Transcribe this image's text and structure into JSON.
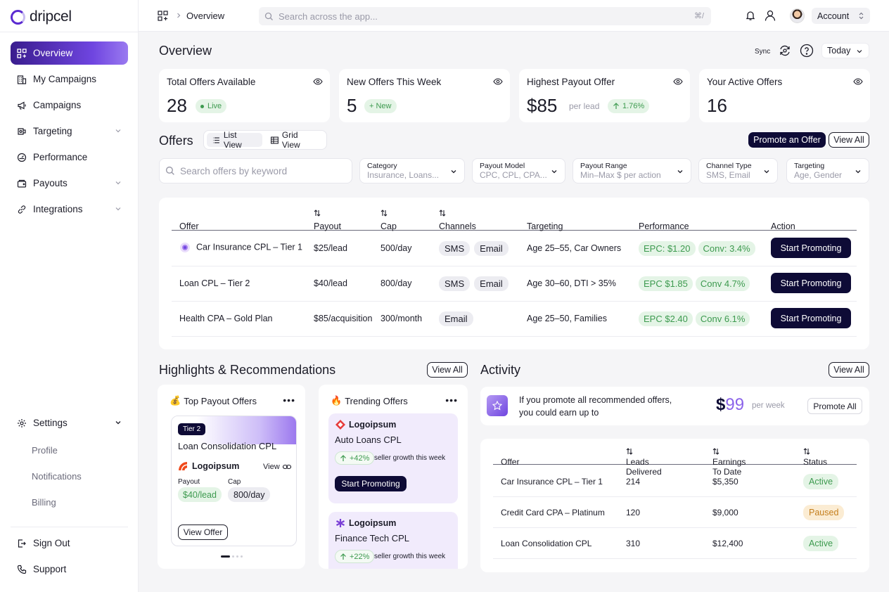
{
  "app": {
    "brand": "dripcel"
  },
  "sidebar": {
    "items": [
      {
        "label": "Overview",
        "icon": "grid-icon"
      },
      {
        "label": "My Campaigns",
        "icon": "building-icon"
      },
      {
        "label": "Campaigns",
        "icon": "megaphone-icon"
      },
      {
        "label": "Targeting",
        "icon": "target-icon"
      },
      {
        "label": "Performance",
        "icon": "gauge-icon"
      },
      {
        "label": "Payouts",
        "icon": "wallet-icon"
      },
      {
        "label": "Integrations",
        "icon": "link-icon"
      }
    ],
    "settings": {
      "label": "Settings",
      "sub": [
        "Profile",
        "Notifications",
        "Billing"
      ]
    },
    "bottom": [
      {
        "label": "Sign Out",
        "icon": "logout-icon"
      },
      {
        "label": "Support",
        "icon": "phone-icon"
      }
    ]
  },
  "topbar": {
    "breadcrumb": "Overview",
    "search_placeholder": "Search across the app...",
    "shortcut": "⌘/",
    "account": "Account"
  },
  "header": {
    "title": "Overview",
    "sync": "Sync",
    "date_range": "Today"
  },
  "stats": [
    {
      "label": "Total Offers Available",
      "value": "28",
      "pill": "Live"
    },
    {
      "label": "New Offers This Week",
      "value": "5",
      "pill": "+ New"
    },
    {
      "label": "Highest Payout Offer",
      "value": "$85",
      "sub": "per lead",
      "pill": "1.76%"
    },
    {
      "label": "Your Active Offers",
      "value": "16"
    }
  ],
  "offers": {
    "title": "Offers",
    "list_view": "List View",
    "grid_view": "Grid View",
    "promote": "Promote an Offer",
    "view_all": "View All",
    "search_placeholder": "Search offers by keyword",
    "filters": [
      {
        "label": "Category",
        "value": "Insurance, Loans..."
      },
      {
        "label": "Payout Model",
        "value": "CPC, CPL, CPA..."
      },
      {
        "label": "Payout Range",
        "value": "Min–Max $ per action"
      },
      {
        "label": "Channel Type",
        "value": "SMS, Email"
      },
      {
        "label": "Targeting",
        "value": "Age, Gender"
      }
    ],
    "columns": [
      "Offer",
      "Payout",
      "Cap",
      "Channels",
      "Targeting",
      "Performance",
      "Action"
    ],
    "rows": [
      {
        "offer": "Car Insurance CPL – Tier 1",
        "payout": "$25/lead",
        "cap": "500/day",
        "channels": [
          "SMS",
          "Email"
        ],
        "targeting": "Age 25–55, Car Owners",
        "perf": [
          "EPC: $1.20",
          "Conv: 3.4%"
        ],
        "action": "Start Promoting"
      },
      {
        "offer": "Loan CPL – Tier 2",
        "payout": "$40/lead",
        "cap": "800/day",
        "channels": [
          "SMS",
          "Email"
        ],
        "targeting": "Age 30–60, DTI > 35%",
        "perf": [
          "EPC $1.85",
          "Conv 4.7%"
        ],
        "action": "Start Promoting"
      },
      {
        "offer": "Health CPA – Gold Plan",
        "payout": "$85/acquisition",
        "cap": "300/month",
        "channels": [
          "Email"
        ],
        "targeting": "Age 25–50, Families",
        "perf": [
          "EPC $2.40",
          "Conv 6.1%"
        ],
        "action": "Start Promoting"
      }
    ]
  },
  "highlights": {
    "title": "Highlights & Recommendations",
    "view_all": "View All",
    "top_payout": {
      "title": "Top Payout Offers",
      "emoji": "💰",
      "tier": "Tier 2",
      "name": "Loan Consolidation CPL",
      "brand": "Logoipsum",
      "view": "View",
      "payout_label": "Payout",
      "cap_label": "Cap",
      "payout": "$40/lead",
      "cap": "800/day",
      "button": "View Offer"
    },
    "trending": {
      "title": "Trending Offers",
      "emoji": "🔥",
      "items": [
        {
          "brand": "Logoipsum",
          "name": "Auto Loans CPL",
          "growth": "+42%",
          "note": "seller growth this week",
          "button": "Start Promoting"
        },
        {
          "brand": "Logoipsum",
          "name": "Finance Tech CPL",
          "growth": "+22%",
          "note": "seller growth this week"
        }
      ]
    }
  },
  "activity": {
    "title": "Activity",
    "view_all": "View All",
    "promo_text": "If you promote all recommended offers, you could earn up to",
    "promo_currency": "$",
    "promo_amount": "99",
    "promo_per": "per week",
    "promo_button": "Promote All",
    "columns": [
      "Offer",
      "Leads Delivered",
      "Earnings To Date",
      "Status"
    ],
    "rows": [
      {
        "offer": "Car Insurance CPL – Tier 1",
        "leads": "214",
        "earnings": "$5,350",
        "status": "Active"
      },
      {
        "offer": "Credit Card CPA – Platinum",
        "leads": "120",
        "earnings": "$9,000",
        "status": "Paused"
      },
      {
        "offer": "Loan Consolidation CPL",
        "leads": "310",
        "earnings": "$12,400",
        "status": "Active"
      }
    ]
  },
  "colors": {
    "accent": "#6f45e0",
    "dark": "#0e0b36",
    "green": "#3d9a4f",
    "orange": "#c47e1c"
  }
}
